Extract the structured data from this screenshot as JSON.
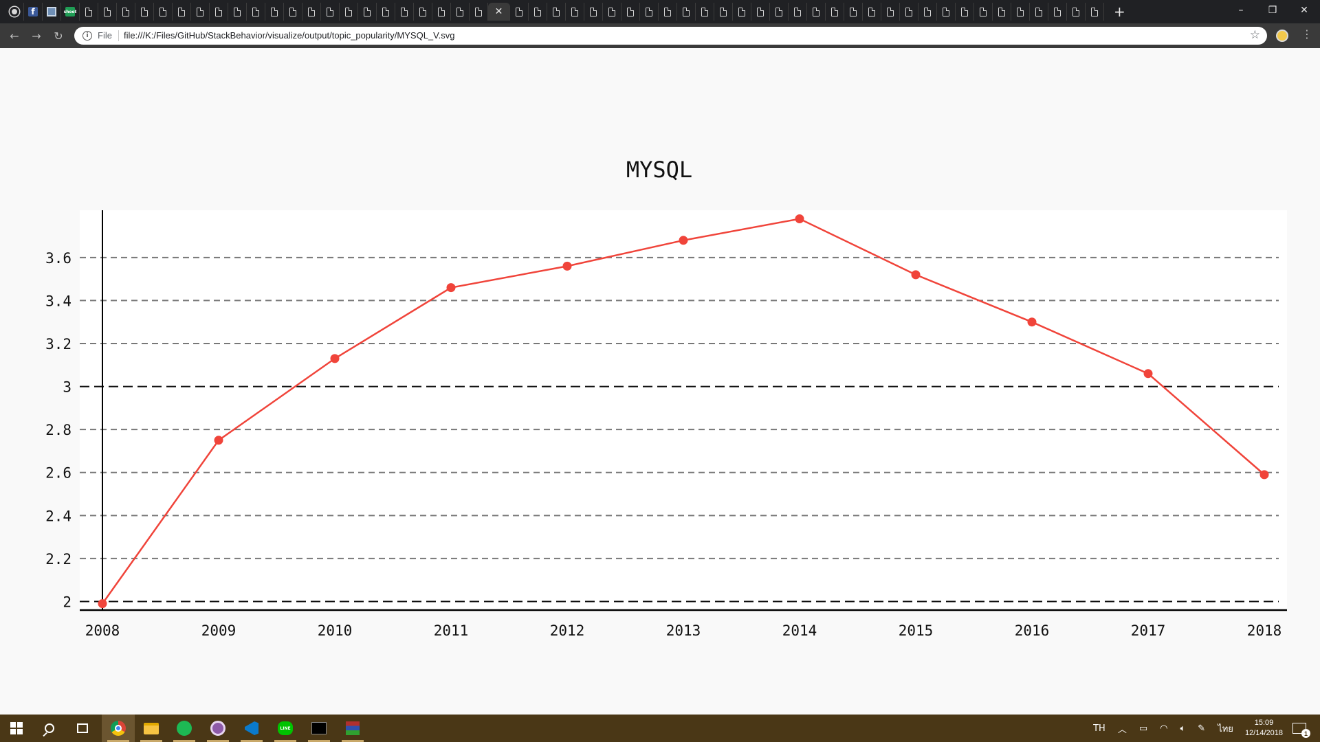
{
  "browser": {
    "tab_count": 59,
    "active_tab_index": 26,
    "new_tab_label": "+",
    "window_controls": {
      "minimize": "–",
      "restore": "❐",
      "close": "✕"
    },
    "address": {
      "scheme_label": "File",
      "url": "file:///K:/Files/GitHub/StackBehavior/visualize/output/topic_popularity/MYSQL_V.svg"
    }
  },
  "chart_data": {
    "type": "line",
    "title": "MYSQL",
    "categories": [
      "2008",
      "2009",
      "2010",
      "2011",
      "2012",
      "2013",
      "2014",
      "2015",
      "2016",
      "2017",
      "2018"
    ],
    "values": [
      1.99,
      2.75,
      3.13,
      3.46,
      3.56,
      3.68,
      3.78,
      3.52,
      3.3,
      3.06,
      2.59
    ],
    "yticks": [
      "2",
      "2.2",
      "2.4",
      "2.6",
      "2.8",
      "3",
      "3.2",
      "3.4",
      "3.6"
    ],
    "ylim": [
      1.96,
      3.82
    ],
    "grid": true,
    "line_color": "#f0443a"
  },
  "taskbar": {
    "apps": [
      "windows-start",
      "search",
      "task-view",
      "chrome",
      "file-explorer",
      "spotify",
      "github-desktop",
      "vscode",
      "line",
      "terminal",
      "winrar"
    ],
    "language": "TH",
    "ime": "ไทย",
    "time": "15:09",
    "date": "12/14/2018",
    "notification_count": "1"
  }
}
